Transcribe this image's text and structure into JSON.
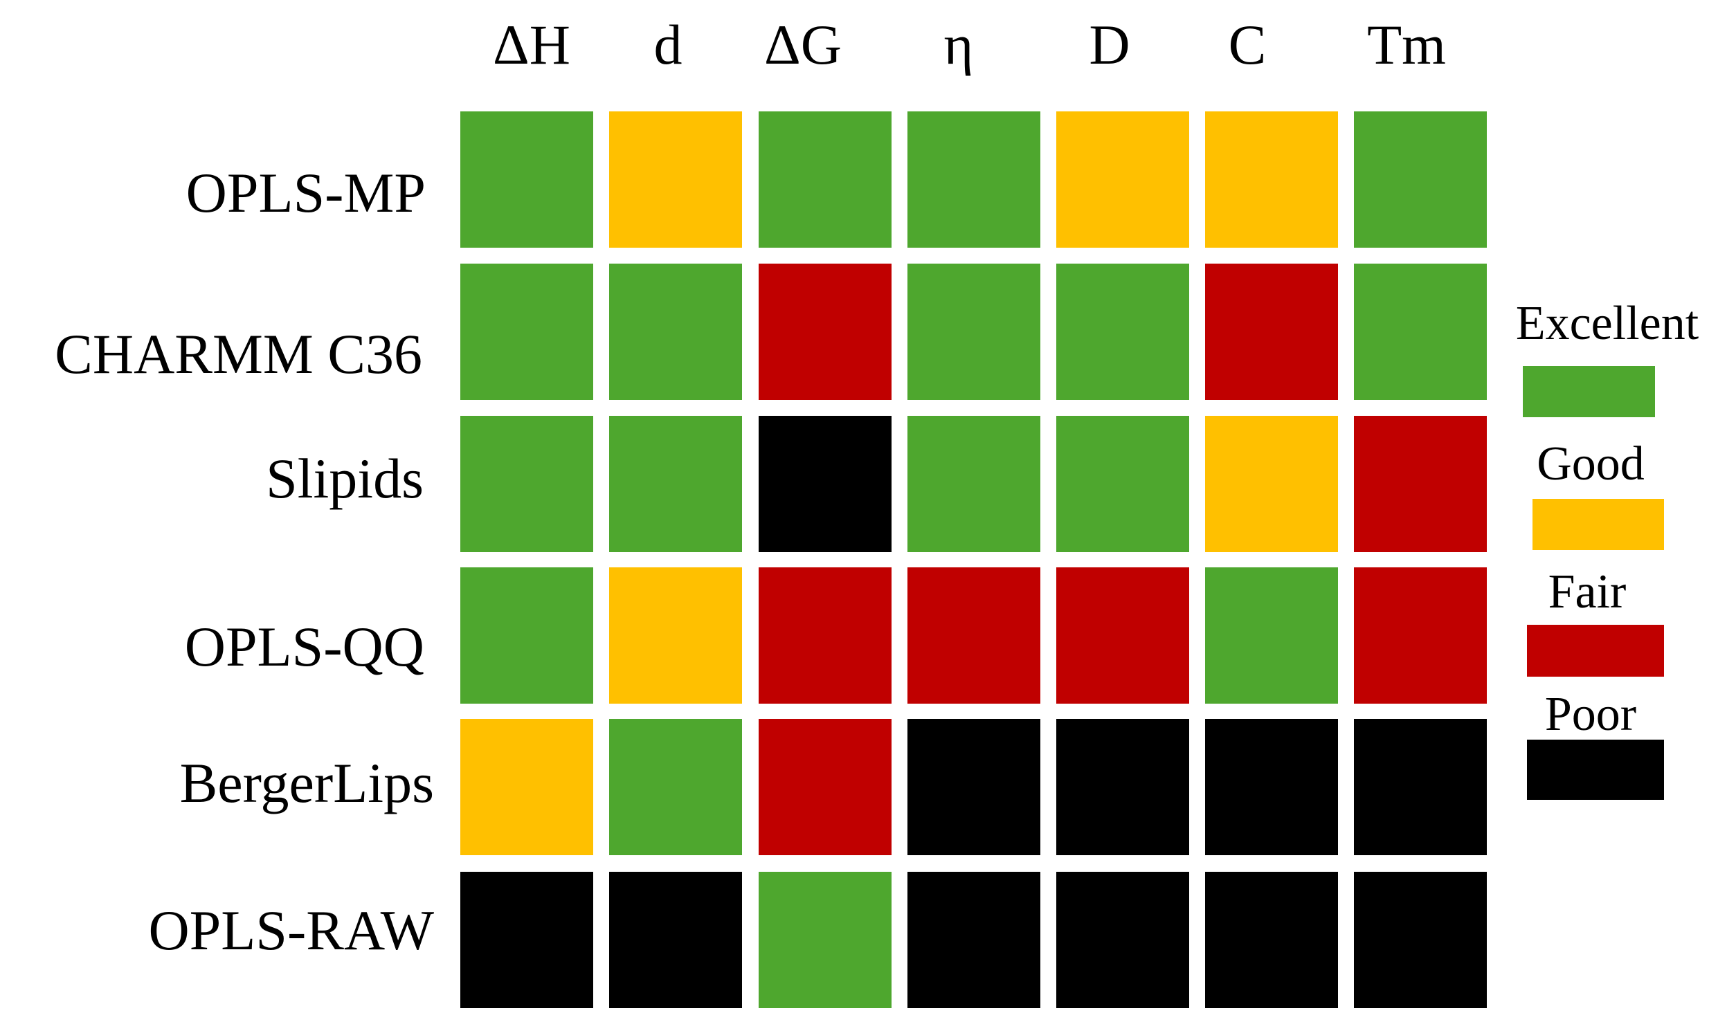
{
  "chart_data": {
    "type": "heatmap",
    "title": "",
    "xlabel": "",
    "ylabel": "",
    "columns": [
      "ΔH",
      "d",
      "ΔG",
      "η",
      "D",
      "C",
      "Tm"
    ],
    "rows": [
      "OPLS-MP",
      "CHARMM C36",
      "Slipids",
      "OPLS-QQ",
      "BergerLips",
      "OPLS-RAW"
    ],
    "values": [
      [
        "Excellent",
        "Good",
        "Excellent",
        "Excellent",
        "Good",
        "Good",
        "Excellent"
      ],
      [
        "Excellent",
        "Excellent",
        "Fair",
        "Excellent",
        "Excellent",
        "Fair",
        "Excellent"
      ],
      [
        "Excellent",
        "Excellent",
        "Poor",
        "Excellent",
        "Excellent",
        "Good",
        "Fair"
      ],
      [
        "Excellent",
        "Good",
        "Fair",
        "Fair",
        "Fair",
        "Excellent",
        "Fair"
      ],
      [
        "Good",
        "Excellent",
        "Fair",
        "Poor",
        "Poor",
        "Poor",
        "Poor"
      ],
      [
        "Poor",
        "Poor",
        "Excellent",
        "Poor",
        "Poor",
        "Poor",
        "Poor"
      ]
    ],
    "legend": {
      "placement": "right",
      "items": [
        {
          "label": "Excellent",
          "color": "#4ea72e"
        },
        {
          "label": "Good",
          "color": "#ffc000"
        },
        {
          "label": "Fair",
          "color": "#c00000"
        },
        {
          "label": "Poor",
          "color": "#000000"
        }
      ]
    }
  }
}
